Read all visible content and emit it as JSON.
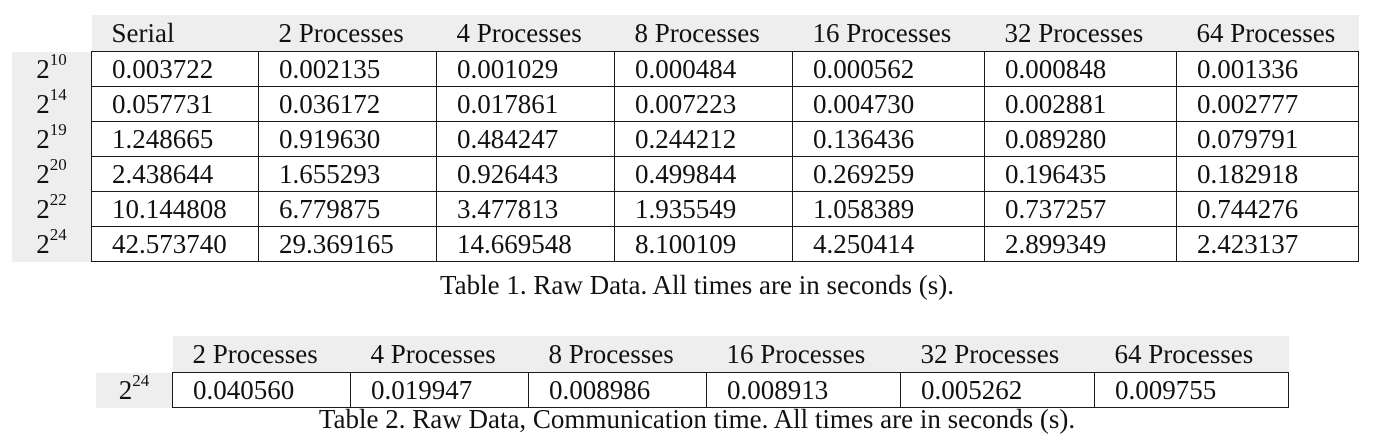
{
  "table1": {
    "columns": [
      "Serial",
      "2 Processes",
      "4 Processes",
      "8 Processes",
      "16 Processes",
      "32 Processes",
      "64 Processes"
    ],
    "rows": [
      {
        "base": "2",
        "exp": "10",
        "values": [
          "0.003722",
          "0.002135",
          "0.001029",
          "0.000484",
          "0.000562",
          "0.000848",
          "0.001336"
        ]
      },
      {
        "base": "2",
        "exp": "14",
        "values": [
          "0.057731",
          "0.036172",
          "0.017861",
          "0.007223",
          "0.004730",
          "0.002881",
          "0.002777"
        ]
      },
      {
        "base": "2",
        "exp": "19",
        "values": [
          "1.248665",
          "0.919630",
          "0.484247",
          "0.244212",
          "0.136436",
          "0.089280",
          "0.079791"
        ]
      },
      {
        "base": "2",
        "exp": "20",
        "values": [
          "2.438644",
          "1.655293",
          "0.926443",
          "0.499844",
          "0.269259",
          "0.196435",
          "0.182918"
        ]
      },
      {
        "base": "2",
        "exp": "22",
        "values": [
          "10.144808",
          "6.779875",
          "3.477813",
          "1.935549",
          "1.058389",
          "0.737257",
          "0.744276"
        ]
      },
      {
        "base": "2",
        "exp": "24",
        "values": [
          "42.573740",
          "29.369165",
          "14.669548",
          "8.100109",
          "4.250414",
          "2.899349",
          "2.423137"
        ]
      }
    ],
    "caption": "Table 1. Raw Data. All times are in seconds (s)."
  },
  "table2": {
    "columns": [
      "2 Processes",
      "4 Processes",
      "8 Processes",
      "16 Processes",
      "32 Processes",
      "64 Processes"
    ],
    "rows": [
      {
        "base": "2",
        "exp": "24",
        "values": [
          "0.040560",
          "0.019947",
          "0.008986",
          "0.008913",
          "0.005262",
          "0.009755"
        ]
      }
    ],
    "caption": "Table 2. Raw Data, Communication time. All times are in seconds (s)."
  }
}
